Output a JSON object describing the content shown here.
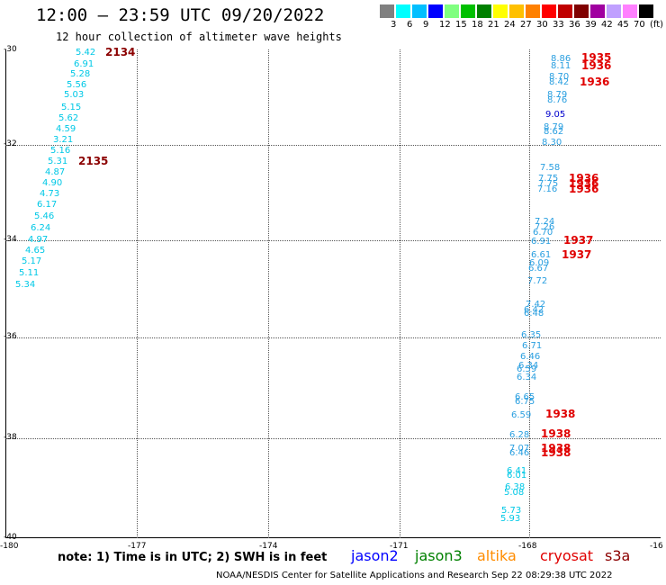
{
  "title": "12:00 — 23:59 UTC 09/20/2022",
  "subtitle": "12 hour collection of altimeter wave heights",
  "color_scale": {
    "labels": [
      "3",
      "6",
      "9",
      "12",
      "15",
      "18",
      "21",
      "24",
      "27",
      "30",
      "33",
      "36",
      "39",
      "42",
      "45",
      "70",
      "(ft)"
    ],
    "colors": [
      "#808080",
      "#00ffff",
      "#00bfff",
      "#0000ff",
      "#80ff80",
      "#00c000",
      "#008000",
      "#ffff00",
      "#ffc000",
      "#ff8000",
      "#ff0000",
      "#c00000",
      "#800000",
      "#a000a0",
      "#c0a0ff",
      "#ff80ff",
      "#000000"
    ]
  },
  "axes": {
    "x_ticks": [
      "-180",
      "-177",
      "-174",
      "-171",
      "-168",
      "-16"
    ],
    "y_ticks": [
      "-30",
      "-32",
      "-34",
      "-36",
      "-38",
      "-40"
    ]
  },
  "wave_values": [
    {
      "text": "5.42",
      "color": "#00c8e6"
    },
    {
      "text": "6.91",
      "color": "#00c8e6"
    },
    {
      "text": "5.28",
      "color": "#00c8e6"
    },
    {
      "text": "5.56",
      "color": "#00c8e6"
    },
    {
      "text": "5.03",
      "color": "#00c8e6"
    },
    {
      "text": "5.15",
      "color": "#00c8e6"
    },
    {
      "text": "5.62",
      "color": "#00c8e6"
    },
    {
      "text": "4.59",
      "color": "#00c8e6"
    },
    {
      "text": "3.21",
      "color": "#00c8e6"
    },
    {
      "text": "5.16",
      "color": "#00c8e6"
    },
    {
      "text": "5.31",
      "color": "#00c8e6"
    },
    {
      "text": "4.87",
      "color": "#00c8e6"
    },
    {
      "text": "4.90",
      "color": "#00c8e6"
    },
    {
      "text": "4.73",
      "color": "#00c8e6"
    },
    {
      "text": "6.17",
      "color": "#00c8e6"
    },
    {
      "text": "5.46",
      "color": "#00c8e6"
    },
    {
      "text": "6.24",
      "color": "#00c8e6"
    },
    {
      "text": "4.97",
      "color": "#00c8e6"
    },
    {
      "text": "4.65",
      "color": "#00c8e6"
    },
    {
      "text": "5.17",
      "color": "#00c8e6"
    },
    {
      "text": "5.11",
      "color": "#00c8e6"
    },
    {
      "text": "5.34",
      "color": "#00c8e6"
    },
    {
      "text": "8.86",
      "color": "#2a9fe0"
    },
    {
      "text": "8.11",
      "color": "#2a9fe0"
    },
    {
      "text": "8.70",
      "color": "#2a9fe0"
    },
    {
      "text": "8.42",
      "color": "#2a9fe0"
    },
    {
      "text": "8.79",
      "color": "#2a9fe0"
    },
    {
      "text": "8.76",
      "color": "#2a9fe0"
    },
    {
      "text": "9.05",
      "color": "#0000cc"
    },
    {
      "text": "8.79",
      "color": "#2a9fe0"
    },
    {
      "text": "8.62",
      "color": "#2a9fe0"
    },
    {
      "text": "8.30",
      "color": "#2a9fe0"
    },
    {
      "text": "7.58",
      "color": "#2a9fe0"
    },
    {
      "text": "7.75",
      "color": "#2a9fe0"
    },
    {
      "text": "7.75",
      "color": "#2a9fe0"
    },
    {
      "text": "7.16",
      "color": "#2a9fe0"
    },
    {
      "text": "7.24",
      "color": "#2a9fe0"
    },
    {
      "text": "7.26",
      "color": "#2a9fe0"
    },
    {
      "text": "6.70",
      "color": "#2a9fe0"
    },
    {
      "text": "6.91",
      "color": "#2a9fe0"
    },
    {
      "text": "6.61",
      "color": "#2a9fe0"
    },
    {
      "text": "6.09",
      "color": "#2a9fe0"
    },
    {
      "text": "6.67",
      "color": "#2a9fe0"
    },
    {
      "text": "7.72",
      "color": "#2a9fe0"
    },
    {
      "text": "7.42",
      "color": "#2a9fe0"
    },
    {
      "text": "6.42",
      "color": "#2a9fe0"
    },
    {
      "text": "6.48",
      "color": "#2a9fe0"
    },
    {
      "text": "6.35",
      "color": "#2a9fe0"
    },
    {
      "text": "6.71",
      "color": "#2a9fe0"
    },
    {
      "text": "6.46",
      "color": "#2a9fe0"
    },
    {
      "text": "6.34",
      "color": "#2a9fe0"
    },
    {
      "text": "6.59",
      "color": "#2a9fe0"
    },
    {
      "text": "6.34",
      "color": "#2a9fe0"
    },
    {
      "text": "6.65",
      "color": "#2a9fe0"
    },
    {
      "text": "6.75",
      "color": "#2a9fe0"
    },
    {
      "text": "6.59",
      "color": "#2a9fe0"
    },
    {
      "text": "6.28",
      "color": "#2a9fe0"
    },
    {
      "text": "7.07",
      "color": "#2a9fe0"
    },
    {
      "text": "6.46",
      "color": "#2a9fe0"
    },
    {
      "text": "6.41",
      "color": "#00c8e6"
    },
    {
      "text": "6.01",
      "color": "#00c8e6"
    },
    {
      "text": "6.38",
      "color": "#00c8e6"
    },
    {
      "text": "5.08",
      "color": "#00c8e6"
    },
    {
      "text": "5.73",
      "color": "#00c8e6"
    },
    {
      "text": "5.93",
      "color": "#00c8e6"
    }
  ],
  "time_labels": [
    {
      "text": "2134",
      "color": "#8b0000"
    },
    {
      "text": "2135",
      "color": "#8b0000"
    },
    {
      "text": "1935",
      "color": "#e00000"
    },
    {
      "text": "1936",
      "color": "#e00000"
    },
    {
      "text": "1936",
      "color": "#e00000"
    },
    {
      "text": "1936",
      "color": "#e00000"
    },
    {
      "text": "1936",
      "color": "#e00000"
    },
    {
      "text": "1936",
      "color": "#e00000"
    },
    {
      "text": "1937",
      "color": "#e00000"
    },
    {
      "text": "1937",
      "color": "#e00000"
    },
    {
      "text": "1938",
      "color": "#e00000"
    },
    {
      "text": "1938",
      "color": "#e00000"
    },
    {
      "text": "1938",
      "color": "#e00000"
    },
    {
      "text": "1938",
      "color": "#e00000"
    }
  ],
  "note": "note: 1) Time is in UTC; 2) SWH is in feet",
  "satellites": [
    {
      "name": "jason2",
      "color": "#0000ff"
    },
    {
      "name": "jason3",
      "color": "#008000"
    },
    {
      "name": "altika",
      "color": "#ff8c00"
    },
    {
      "name": "cryosat",
      "color": "#e00000"
    },
    {
      "name": "s3a",
      "color": "#8b0000"
    }
  ],
  "footer": "NOAA/NESDIS Center for Satellite Applications and Research   Sep 22 08:29:38 UTC 2022"
}
